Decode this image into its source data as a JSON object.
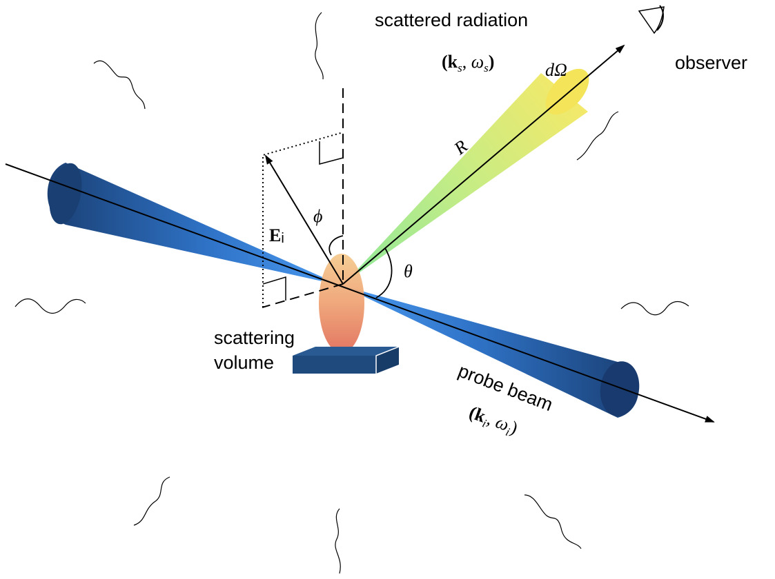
{
  "labels": {
    "scattered_radiation": "scattered radiation",
    "observer": "observer",
    "scattering_volume_line1": "scattering",
    "scattering_volume_line2": "volume",
    "probe_beam": "probe beam",
    "R": "R",
    "dOmega": "dΩ",
    "theta": "θ",
    "phi": "ϕ",
    "E_main": "E",
    "E_sub": "i",
    "ks_open": "(",
    "ks_k": "k",
    "ks_sub": "s",
    "ks_comma": ", ",
    "ks_omega": "ω",
    "ks_omega_sub": "s",
    "ks_close": ")",
    "ki_open": "(",
    "ki_k": "k",
    "ki_sub": "i",
    "ki_comma": ", ",
    "ki_omega": "ω",
    "ki_omega_sub": "i",
    "ki_close": ")"
  },
  "colors": {
    "beam_dark": "#1a3f73",
    "beam_mid": "#2f73c7",
    "beam_light": "#4a9af0",
    "cone_green": "#8fe89a",
    "cone_yellow": "#f3e96a",
    "cone_end": "#f3e45a",
    "volume_top": "#f5c98c",
    "volume_bottom": "#e06a55",
    "platform": "#1f4a7d",
    "line": "#000000"
  },
  "icons": [
    "eye-icon"
  ]
}
